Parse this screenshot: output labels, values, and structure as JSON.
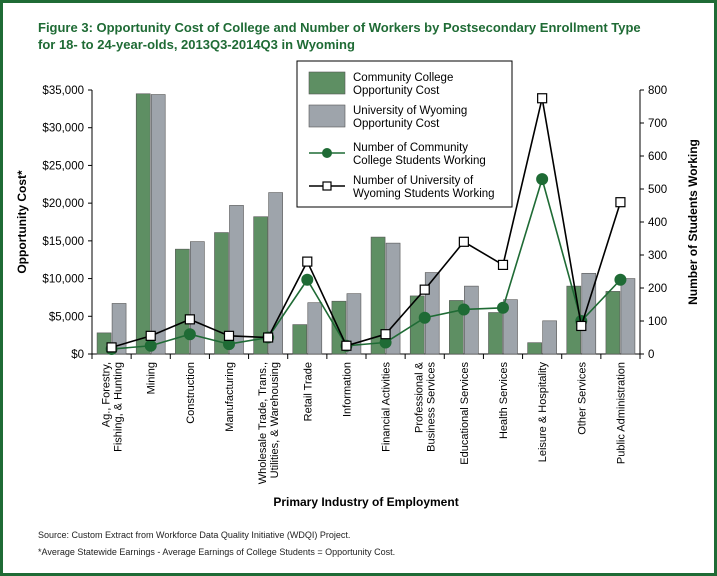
{
  "figure": {
    "title_line1": "Figure 3: Opportunity Cost of College and Number of Workers by Postsecondary Enrollment Type",
    "title_line2": "for 18- to 24-year-olds, 2013Q3-2014Q3 in Wyoming",
    "source": "Source: Custom Extract from Workforce Data Quality Initiative (WDQI) Project.",
    "footnote": "*Average Statewide Earnings - Average Earnings of College Students = Opportunity Cost."
  },
  "chart_data": {
    "type": "bar",
    "xlabel": "Primary Industry of Employment",
    "ylabel": "Opportunity Cost*",
    "y2label": "Number of Students Working",
    "ylim": [
      0,
      35000
    ],
    "y2lim": [
      0,
      800
    ],
    "y_ticks": [
      "$0",
      "$5,000",
      "$10,000",
      "$15,000",
      "$20,000",
      "$25,000",
      "$30,000",
      "$35,000"
    ],
    "y2_ticks": [
      "0",
      "100",
      "200",
      "300",
      "400",
      "500",
      "600",
      "700",
      "800"
    ],
    "grid": false,
    "legend_position": "top-right",
    "categories": [
      [
        "Ag., Forestry,",
        "Fishing, & Hunting"
      ],
      [
        "Mining"
      ],
      [
        "Construction"
      ],
      [
        "Manufacturing"
      ],
      [
        "Wholesale Trade, Trans.,",
        "Utilities, & Warehousing"
      ],
      [
        "Retail Trade"
      ],
      [
        "Information"
      ],
      [
        "Financial Activities"
      ],
      [
        "Professional &",
        "Business Services"
      ],
      [
        "Educational Services"
      ],
      [
        "Health Services"
      ],
      [
        "Leisure & Hospitality"
      ],
      [
        "Other Services"
      ],
      [
        "Public Administration"
      ]
    ],
    "series": [
      {
        "name": "Community College Opportunity Cost",
        "type": "bar",
        "axis": "left",
        "color": "#5e8f63",
        "values": [
          2800,
          34500,
          13900,
          16100,
          18200,
          3900,
          7000,
          15500,
          7700,
          7100,
          5500,
          1500,
          9000,
          8300
        ]
      },
      {
        "name": "University of Wyoming Opportunity Cost",
        "type": "bar",
        "axis": "left",
        "color": "#9ea4ab",
        "values": [
          6700,
          34400,
          14900,
          19700,
          21400,
          6800,
          8000,
          14700,
          10800,
          9000,
          7200,
          4400,
          10700,
          10000
        ]
      },
      {
        "name": "Number of Community College Students Working",
        "type": "line",
        "axis": "right",
        "color": "#1f6b35",
        "marker": "filled-circle",
        "values": [
          15,
          25,
          60,
          30,
          50,
          225,
          25,
          35,
          110,
          135,
          140,
          530,
          100,
          225
        ]
      },
      {
        "name": "Number of University of Wyoming Students Working",
        "type": "line",
        "axis": "right",
        "color": "#000000",
        "marker": "open-square",
        "values": [
          20,
          55,
          105,
          55,
          50,
          280,
          25,
          60,
          195,
          340,
          270,
          775,
          85,
          460
        ]
      }
    ],
    "legend_labels": [
      [
        "Community College",
        "Opportunity Cost"
      ],
      [
        "University of Wyoming",
        "Opportunity Cost"
      ],
      [
        "Number of Community",
        "College Students Working"
      ],
      [
        "Number of University of",
        "Wyoming Students Working"
      ]
    ]
  }
}
